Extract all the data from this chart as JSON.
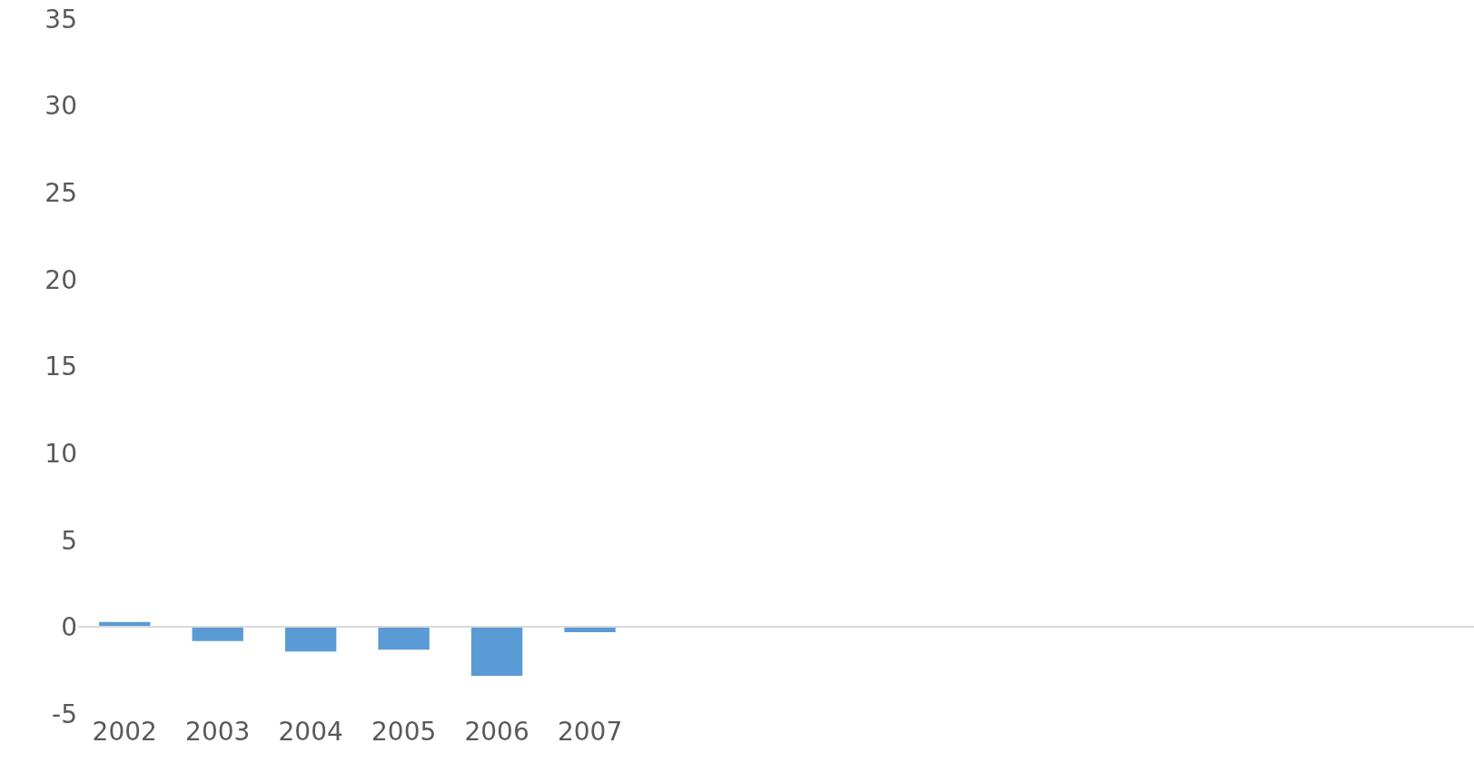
{
  "chart_data": {
    "type": "bar",
    "categories": [
      "2002",
      "2003",
      "2004",
      "2005",
      "2006",
      "2007",
      null,
      null,
      null,
      null,
      null,
      null,
      null,
      null,
      null
    ],
    "values": [
      0.3,
      -0.8,
      -1.4,
      -1.3,
      -2.8,
      -0.3,
      null,
      null,
      null,
      null,
      null,
      null,
      null,
      null,
      null
    ],
    "color": "#5b9bd5",
    "ylim": [
      -5,
      35
    ],
    "yticks": [
      -5,
      0,
      5,
      10,
      15,
      20,
      25,
      30,
      35
    ],
    "legend": false
  }
}
